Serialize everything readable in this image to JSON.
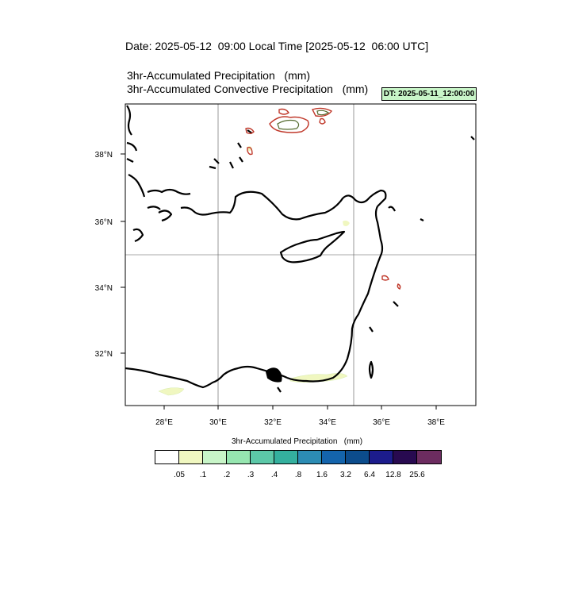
{
  "header": {
    "date_line": "Date: 2025-05-12  09:00 Local Time [2025-05-12  06:00 UTC]",
    "subtitle_1": "3hr-Accumulated Precipitation   (mm)",
    "subtitle_2": "3hr-Accumulated Convective Precipitation   (mm)",
    "dt_badge": "DT: 2025-05-11_12:00:00",
    "dt_badge_color": "#c8f5c8"
  },
  "map": {
    "region": "Eastern Mediterranean",
    "lon_range": [
      26.6,
      39.3
    ],
    "lat_range": [
      30.3,
      39.5
    ],
    "lon_ticks": [
      "28°E",
      "30°E",
      "32°E",
      "34°E",
      "36°E",
      "38°E"
    ],
    "lat_ticks": [
      "38°N",
      "36°N",
      "34°N",
      "32°N"
    ],
    "gridlines_lon": [
      30,
      35
    ],
    "gridlines_lat": [
      35
    ],
    "coastline_color": "#000000",
    "convective_contour_color": "#c0392b"
  },
  "legend": {
    "title": "3hr-Accumulated Precipitation   (mm)",
    "colors": [
      "#ffffff",
      "#f0f7c0",
      "#c8f5c8",
      "#96e6b0",
      "#5cc8a8",
      "#34b09e",
      "#2c8cb4",
      "#1464ac",
      "#0c4c8c",
      "#1c1c8c",
      "#280a50",
      "#6c2c60"
    ],
    "labels": [
      ".05",
      ".1",
      ".2",
      ".3",
      ".4",
      ".8",
      "1.6",
      "3.2",
      "6.4",
      "12.8",
      "25.6"
    ]
  }
}
